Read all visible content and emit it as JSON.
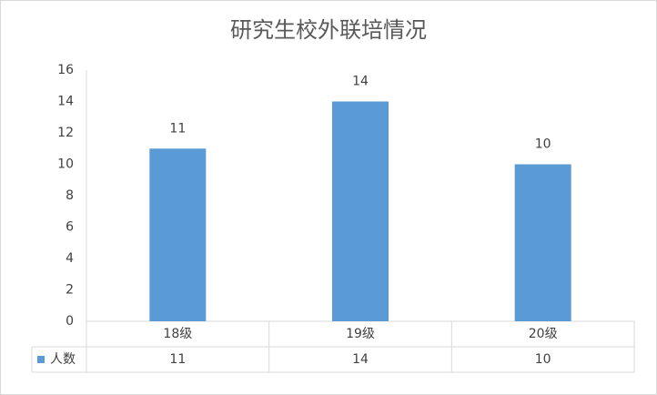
{
  "chart_data": {
    "type": "bar",
    "title": "研究生校外联培情况",
    "categories": [
      "18级",
      "19级",
      "20级"
    ],
    "series": [
      {
        "name": "人数",
        "color": "#5b9bd5",
        "values": [
          11,
          14,
          10
        ]
      }
    ],
    "ylim": [
      0,
      16
    ],
    "yticks": [
      0,
      2,
      4,
      6,
      8,
      10,
      12,
      14,
      16
    ],
    "grid": false
  }
}
